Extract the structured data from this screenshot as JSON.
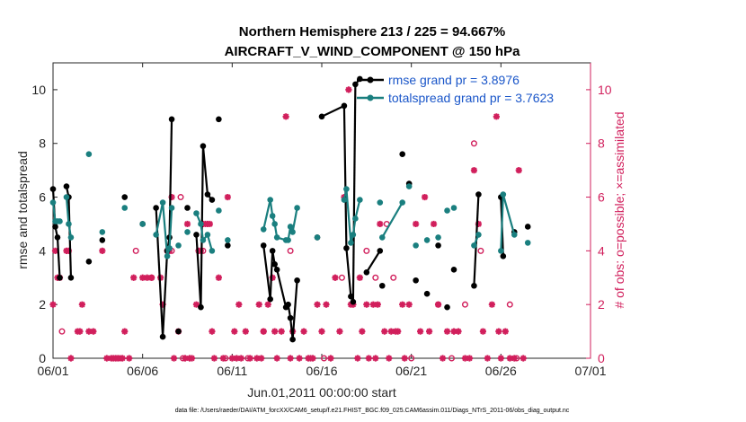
{
  "chart_data": {
    "type": "line",
    "title": "Northern Hemisphere 213 / 225 = 94.667%",
    "subtitle": "AIRCRAFT_V_WIND_COMPONENT @ 150 hPa",
    "xlabel": "Jun.01,2011 00:00:00 start",
    "ylabel_left": "rmse and totalspread",
    "ylabel_right": "# of obs: o=possible; ×=assimilated",
    "xlim": [
      0,
      30
    ],
    "ylim_left": [
      0,
      11
    ],
    "ylim_right": [
      0,
      11
    ],
    "x_ticks": [
      {
        "x": 0,
        "label": "06/01"
      },
      {
        "x": 5,
        "label": "06/06"
      },
      {
        "x": 10,
        "label": "06/11"
      },
      {
        "x": 15,
        "label": "06/16"
      },
      {
        "x": 20,
        "label": "06/21"
      },
      {
        "x": 25,
        "label": "06/26"
      },
      {
        "x": 30,
        "label": "07/01"
      }
    ],
    "y_ticks_left": [
      "0",
      "2",
      "4",
      "6",
      "8",
      "10"
    ],
    "y_ticks_right": [
      "0",
      "2",
      "4",
      "6",
      "8",
      "10"
    ],
    "legend": [
      {
        "label": "rmse grand pr = 3.8976",
        "color": "#000000"
      },
      {
        "label": "totalspread grand pr = 3.7623",
        "color": "#1a7f7f"
      }
    ],
    "series": [
      {
        "name": "rmse",
        "color": "#000000",
        "points": [
          [
            0.0,
            6.3
          ],
          [
            0.125,
            4.9
          ],
          [
            0.25,
            4.5
          ],
          [
            0.375,
            3.0
          ],
          [
            0.75,
            6.4
          ],
          [
            0.875,
            6.0
          ],
          [
            1.0,
            3.0
          ],
          [
            2.0,
            3.6
          ],
          [
            2.75,
            4.4
          ],
          [
            4.0,
            6.0
          ],
          [
            5.0,
            5.0
          ],
          [
            5.75,
            5.6
          ],
          [
            6.125,
            0.8
          ],
          [
            6.375,
            4.0
          ],
          [
            6.5,
            4.5
          ],
          [
            6.625,
            8.9
          ],
          [
            7.0,
            1.0
          ],
          [
            7.5,
            5.6
          ],
          [
            8.0,
            4.6
          ],
          [
            8.25,
            1.9
          ],
          [
            8.375,
            7.9
          ],
          [
            8.625,
            6.1
          ],
          [
            8.875,
            5.9
          ],
          [
            9.25,
            8.9
          ],
          [
            9.75,
            4.2
          ],
          [
            11.75,
            4.2
          ],
          [
            12.125,
            2.2
          ],
          [
            12.25,
            4.0
          ],
          [
            12.375,
            3.5
          ],
          [
            12.5,
            3.3
          ],
          [
            13.0,
            1.9
          ],
          [
            13.125,
            2.0
          ],
          [
            13.25,
            1.5
          ],
          [
            13.375,
            0.7
          ],
          [
            13.625,
            2.9
          ],
          [
            14.75,
            4.5
          ],
          [
            15.0,
            9.0
          ],
          [
            16.25,
            9.4
          ],
          [
            16.375,
            4.1
          ],
          [
            16.625,
            2.3
          ],
          [
            16.75,
            2.1
          ],
          [
            16.875,
            10.2
          ],
          [
            17.125,
            10.4
          ],
          [
            17.5,
            3.2
          ],
          [
            18.25,
            4.0
          ],
          [
            18.375,
            2.7
          ],
          [
            19.5,
            7.6
          ],
          [
            19.875,
            6.5
          ],
          [
            20.25,
            2.9
          ],
          [
            20.875,
            2.4
          ],
          [
            21.5,
            4.2
          ],
          [
            22.0,
            1.9
          ],
          [
            22.375,
            3.3
          ],
          [
            23.5,
            2.7
          ],
          [
            23.75,
            6.1
          ],
          [
            25.0,
            6.0
          ],
          [
            25.125,
            3.8
          ],
          [
            25.75,
            4.7
          ],
          [
            26.5,
            4.9
          ]
        ],
        "segments": [
          [
            0,
            1
          ],
          [
            1,
            2
          ],
          [
            2,
            3
          ],
          [
            4,
            5
          ],
          [
            5,
            6
          ],
          [
            11,
            12
          ],
          [
            12,
            13
          ],
          [
            13,
            14
          ],
          [
            14,
            15
          ],
          [
            18,
            19
          ],
          [
            19,
            20
          ],
          [
            20,
            21
          ],
          [
            21,
            22
          ],
          [
            25,
            26
          ],
          [
            26,
            27
          ],
          [
            27,
            28
          ],
          [
            28,
            29
          ],
          [
            29,
            30
          ],
          [
            30,
            31
          ],
          [
            31,
            32
          ],
          [
            32,
            33
          ],
          [
            33,
            34
          ],
          [
            36,
            37
          ],
          [
            37,
            38
          ],
          [
            38,
            39
          ],
          [
            39,
            40
          ],
          [
            40,
            41
          ],
          [
            41,
            42
          ],
          [
            43,
            44
          ],
          [
            53,
            54
          ],
          [
            55,
            56
          ]
        ]
      },
      {
        "name": "totalspread",
        "color": "#1a7f7f",
        "points": [
          [
            0.0,
            5.8
          ],
          [
            0.125,
            5.1
          ],
          [
            0.25,
            5.1
          ],
          [
            0.375,
            5.1
          ],
          [
            0.75,
            6.0
          ],
          [
            0.875,
            5.0
          ],
          [
            1.0,
            4.5
          ],
          [
            2.0,
            7.6
          ],
          [
            2.75,
            4.7
          ],
          [
            4.0,
            5.6
          ],
          [
            5.0,
            5.0
          ],
          [
            5.75,
            4.6
          ],
          [
            6.125,
            5.8
          ],
          [
            6.375,
            3.8
          ],
          [
            6.5,
            4.1
          ],
          [
            6.625,
            5.6
          ],
          [
            7.0,
            4.2
          ],
          [
            7.5,
            4.7
          ],
          [
            8.0,
            5.4
          ],
          [
            8.25,
            5.0
          ],
          [
            8.375,
            4.4
          ],
          [
            8.625,
            4.6
          ],
          [
            8.875,
            4.0
          ],
          [
            9.25,
            5.5
          ],
          [
            9.75,
            4.4
          ],
          [
            11.75,
            4.8
          ],
          [
            12.125,
            5.9
          ],
          [
            12.25,
            5.3
          ],
          [
            12.375,
            5.0
          ],
          [
            12.5,
            4.5
          ],
          [
            13.0,
            4.4
          ],
          [
            13.125,
            4.4
          ],
          [
            13.25,
            4.9
          ],
          [
            13.375,
            4.7
          ],
          [
            13.625,
            5.6
          ],
          [
            14.75,
            4.5
          ],
          [
            16.25,
            5.9
          ],
          [
            16.375,
            6.3
          ],
          [
            16.625,
            4.3
          ],
          [
            16.75,
            4.6
          ],
          [
            16.875,
            5.2
          ],
          [
            17.125,
            5.9
          ],
          [
            18.25,
            5.8
          ],
          [
            18.375,
            4.5
          ],
          [
            19.5,
            5.8
          ],
          [
            19.875,
            6.4
          ],
          [
            20.25,
            4.2
          ],
          [
            20.875,
            4.4
          ],
          [
            21.5,
            4.5
          ],
          [
            22.0,
            5.5
          ],
          [
            22.375,
            5.6
          ],
          [
            23.5,
            4.2
          ],
          [
            23.75,
            4.6
          ],
          [
            25.0,
            4.0
          ],
          [
            25.125,
            6.1
          ],
          [
            25.75,
            4.6
          ],
          [
            26.5,
            4.3
          ]
        ],
        "segments": [
          [
            0,
            1
          ],
          [
            1,
            2
          ],
          [
            2,
            3
          ],
          [
            4,
            5
          ],
          [
            5,
            6
          ],
          [
            11,
            12
          ],
          [
            12,
            13
          ],
          [
            13,
            14
          ],
          [
            14,
            15
          ],
          [
            18,
            19
          ],
          [
            19,
            20
          ],
          [
            20,
            21
          ],
          [
            21,
            22
          ],
          [
            25,
            26
          ],
          [
            26,
            27
          ],
          [
            27,
            28
          ],
          [
            28,
            29
          ],
          [
            29,
            30
          ],
          [
            30,
            31
          ],
          [
            31,
            32
          ],
          [
            32,
            33
          ],
          [
            33,
            34
          ],
          [
            36,
            37
          ],
          [
            37,
            38
          ],
          [
            38,
            39
          ],
          [
            39,
            40
          ],
          [
            40,
            41
          ],
          [
            43,
            44
          ],
          [
            51,
            52
          ],
          [
            53,
            54
          ],
          [
            54,
            55
          ]
        ]
      }
    ],
    "obs_assimilated": [
      [
        0.0,
        2
      ],
      [
        0.125,
        4
      ],
      [
        0.25,
        3
      ],
      [
        0.375,
        3
      ],
      [
        0.75,
        4
      ],
      [
        0.875,
        4
      ],
      [
        1.0,
        0
      ],
      [
        1.375,
        1
      ],
      [
        1.5,
        1
      ],
      [
        1.625,
        2
      ],
      [
        2.0,
        1
      ],
      [
        2.25,
        1
      ],
      [
        2.75,
        4
      ],
      [
        3.0,
        0
      ],
      [
        3.25,
        0
      ],
      [
        3.375,
        0
      ],
      [
        3.5,
        0
      ],
      [
        3.625,
        0
      ],
      [
        3.875,
        0
      ],
      [
        4.0,
        1
      ],
      [
        4.25,
        0
      ],
      [
        4.5,
        3
      ],
      [
        5.0,
        3
      ],
      [
        5.25,
        3
      ],
      [
        5.5,
        3
      ],
      [
        6.0,
        3
      ],
      [
        6.125,
        2
      ],
      [
        6.375,
        4
      ],
      [
        6.5,
        4
      ],
      [
        6.625,
        6
      ],
      [
        6.75,
        0
      ],
      [
        7.0,
        1
      ],
      [
        7.375,
        0
      ],
      [
        7.5,
        5
      ],
      [
        7.625,
        0
      ],
      [
        7.75,
        0
      ],
      [
        8.0,
        2
      ],
      [
        8.125,
        4
      ],
      [
        8.25,
        4
      ],
      [
        8.375,
        5
      ],
      [
        8.5,
        5
      ],
      [
        8.625,
        5
      ],
      [
        8.75,
        5
      ],
      [
        8.875,
        1
      ],
      [
        9.0,
        0
      ],
      [
        9.25,
        3
      ],
      [
        9.5,
        0
      ],
      [
        9.75,
        6
      ],
      [
        10.0,
        0
      ],
      [
        10.125,
        1
      ],
      [
        10.25,
        0
      ],
      [
        10.375,
        2
      ],
      [
        10.5,
        0
      ],
      [
        10.75,
        1
      ],
      [
        11.0,
        0
      ],
      [
        11.375,
        0
      ],
      [
        11.5,
        2
      ],
      [
        11.625,
        0
      ],
      [
        11.75,
        1
      ],
      [
        12.0,
        2
      ],
      [
        12.25,
        3
      ],
      [
        12.375,
        1
      ],
      [
        12.5,
        0
      ],
      [
        12.75,
        1
      ],
      [
        13.0,
        9
      ],
      [
        13.25,
        0
      ],
      [
        13.375,
        1
      ],
      [
        13.75,
        0
      ],
      [
        14.0,
        1
      ],
      [
        14.25,
        0
      ],
      [
        14.375,
        0
      ],
      [
        14.5,
        0
      ],
      [
        14.75,
        2
      ],
      [
        15.0,
        1
      ],
      [
        15.25,
        2
      ],
      [
        15.5,
        0
      ],
      [
        15.75,
        3
      ],
      [
        16.0,
        1
      ],
      [
        16.25,
        6
      ],
      [
        16.5,
        10
      ],
      [
        16.625,
        2
      ],
      [
        16.75,
        2
      ],
      [
        17.0,
        0
      ],
      [
        17.125,
        3
      ],
      [
        17.25,
        1
      ],
      [
        17.5,
        2
      ],
      [
        17.625,
        0
      ],
      [
        17.875,
        2
      ],
      [
        18.0,
        0
      ],
      [
        18.125,
        2
      ],
      [
        18.25,
        5
      ],
      [
        18.5,
        1
      ],
      [
        18.75,
        0
      ],
      [
        18.875,
        1
      ],
      [
        19.125,
        1
      ],
      [
        19.25,
        1
      ],
      [
        19.5,
        2
      ],
      [
        19.625,
        0
      ],
      [
        19.875,
        2
      ],
      [
        20.25,
        5
      ],
      [
        20.5,
        1
      ],
      [
        20.75,
        6
      ],
      [
        21.0,
        1
      ],
      [
        21.25,
        5
      ],
      [
        21.5,
        2
      ],
      [
        21.75,
        0
      ],
      [
        22.0,
        1
      ],
      [
        22.375,
        1
      ],
      [
        22.625,
        1
      ],
      [
        23.0,
        0
      ],
      [
        23.25,
        0
      ],
      [
        23.5,
        7
      ],
      [
        23.75,
        5
      ],
      [
        24.0,
        1
      ],
      [
        24.25,
        0
      ],
      [
        24.5,
        2
      ],
      [
        24.75,
        9
      ],
      [
        24.875,
        1
      ],
      [
        25.0,
        0
      ],
      [
        25.25,
        1
      ],
      [
        25.5,
        0
      ],
      [
        25.75,
        0
      ],
      [
        26.0,
        7
      ],
      [
        26.25,
        0
      ]
    ],
    "obs_possible": [
      [
        0.5,
        1
      ],
      [
        3.75,
        0
      ],
      [
        4.625,
        4
      ],
      [
        5.5,
        3
      ],
      [
        6.625,
        4
      ],
      [
        7.125,
        6
      ],
      [
        7.25,
        0
      ],
      [
        8.375,
        4
      ],
      [
        9.625,
        0
      ],
      [
        10.875,
        0
      ],
      [
        11.75,
        1
      ],
      [
        13.25,
        4
      ],
      [
        15.125,
        0
      ],
      [
        16.125,
        3
      ],
      [
        17.5,
        4
      ],
      [
        18.0,
        3
      ],
      [
        18.625,
        5
      ],
      [
        19.0,
        3
      ],
      [
        20.0,
        0
      ],
      [
        21.5,
        2
      ],
      [
        22.25,
        0
      ],
      [
        23.0,
        2
      ],
      [
        23.5,
        8
      ],
      [
        23.875,
        4
      ],
      [
        25.5,
        2
      ],
      [
        25.875,
        0
      ]
    ]
  },
  "footer": "data file: /Users/raeder/DAI/ATM_forcXX/CAM6_setup/f.e21.FHIST_BGC.f09_025.CAM6assim.011/Diags_NTrS_2011-06/obs_diag_output.nc",
  "colors": {
    "rmse": "#000000",
    "totalspread": "#1a7f7f",
    "obs": "#d11f5c",
    "legend_text": "#1a56c9"
  }
}
